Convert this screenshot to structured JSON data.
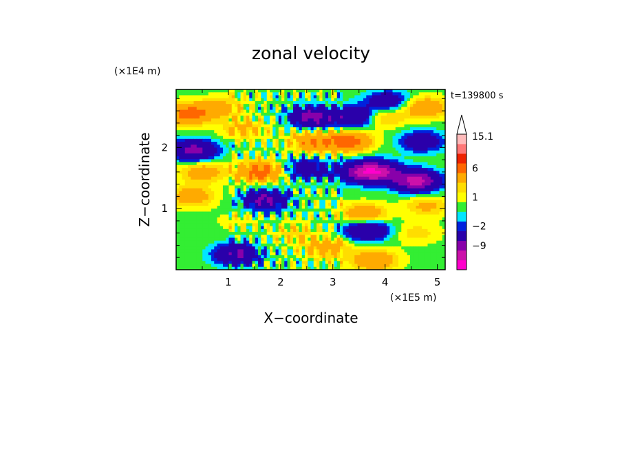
{
  "chart_data": {
    "type": "heatmap",
    "title": "zonal velocity",
    "xlabel": "X−coordinate",
    "ylabel": "Z−coordinate",
    "x_scale_label": "(×1E5 m)",
    "y_scale_label": "(×1E4 m)",
    "time_label": "t=139800 s",
    "xlim": [
      0,
      5.15
    ],
    "ylim": [
      0,
      2.95
    ],
    "x_ticks": [
      1,
      2,
      3,
      4,
      5
    ],
    "y_ticks": [
      1,
      2
    ],
    "x_tick_labels": [
      "1",
      "2",
      "3",
      "4",
      "5"
    ],
    "y_tick_labels": [
      "1",
      "2"
    ],
    "colorbar": {
      "levels": [
        -15.1,
        -12,
        -9,
        -6,
        -2,
        -1,
        0,
        1,
        2,
        3,
        6,
        9,
        12,
        15.1
      ],
      "colors": [
        "#ff00cc",
        "#cc11aa",
        "#8800aa",
        "#2a00aa",
        "#0022dd",
        "#00e6ff",
        "#33ee33",
        "#ffff00",
        "#ffdd00",
        "#ffaa00",
        "#ff6600",
        "#ee2200",
        "#ff7777",
        "#ffbbbb"
      ],
      "labels": [
        "15.1",
        "6",
        "1",
        "−2",
        "−9"
      ],
      "label_values": [
        15.1,
        6,
        1,
        -2,
        -9
      ],
      "extend": "max"
    },
    "field_features": [
      {
        "x": 0.25,
        "z": 2.55,
        "u": 7
      },
      {
        "x": 0.35,
        "z": 1.95,
        "u": -8
      },
      {
        "x": 0.5,
        "z": 1.6,
        "u": 4
      },
      {
        "x": 0.3,
        "z": 1.2,
        "u": 4
      },
      {
        "x": 0.9,
        "z": 2.65,
        "u": 3
      },
      {
        "x": 1.3,
        "z": 2.3,
        "u": 3
      },
      {
        "x": 1.2,
        "z": 0.8,
        "u": 1
      },
      {
        "x": 1.15,
        "z": 0.25,
        "u": -7
      },
      {
        "x": 1.6,
        "z": 1.6,
        "u": 7
      },
      {
        "x": 1.7,
        "z": 1.15,
        "u": -7
      },
      {
        "x": 2.6,
        "z": 2.5,
        "u": -8
      },
      {
        "x": 2.5,
        "z": 1.65,
        "u": -5
      },
      {
        "x": 2.6,
        "z": 2.1,
        "u": 5
      },
      {
        "x": 2.3,
        "z": 0.6,
        "u": 2
      },
      {
        "x": 3.3,
        "z": 2.1,
        "u": 7
      },
      {
        "x": 3.45,
        "z": 2.5,
        "u": -7
      },
      {
        "x": 3.5,
        "z": 1.6,
        "u": -6
      },
      {
        "x": 3.6,
        "z": 0.9,
        "u": 5
      },
      {
        "x": 3.9,
        "z": 2.5,
        "u": 4
      },
      {
        "x": 4.05,
        "z": 2.75,
        "u": -5
      },
      {
        "x": 3.85,
        "z": 1.6,
        "u": -10
      },
      {
        "x": 4.7,
        "z": 2.1,
        "u": -5
      },
      {
        "x": 4.6,
        "z": 1.45,
        "u": -11
      },
      {
        "x": 4.75,
        "z": 2.65,
        "u": 5
      },
      {
        "x": 4.8,
        "z": 1.05,
        "u": 3
      },
      {
        "x": 3.65,
        "z": 0.65,
        "u": -7
      },
      {
        "x": 3.8,
        "z": 0.15,
        "u": 5
      },
      {
        "x": 4.6,
        "z": 0.6,
        "u": 2
      },
      {
        "x": 2.9,
        "z": 0.35,
        "u": 4
      }
    ]
  }
}
